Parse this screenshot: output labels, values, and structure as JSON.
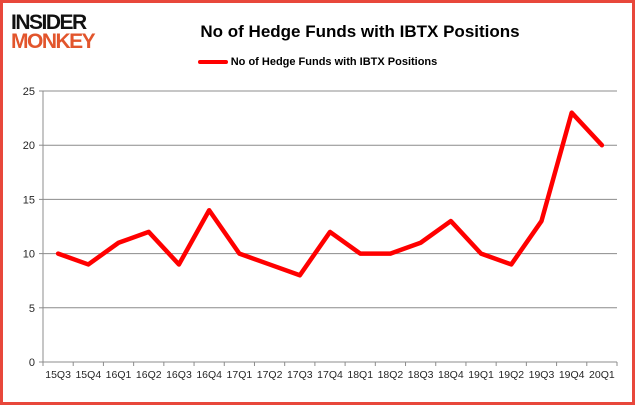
{
  "header": {
    "logo_line1": "INSIDER",
    "logo_line2": "MONKEY",
    "title": "No of Hedge Funds with IBTX Positions"
  },
  "legend": {
    "label": "No of Hedge Funds with IBTX Positions"
  },
  "colors": {
    "line": "#ff0000",
    "page_border": "#e8473b",
    "logo_accent": "#e2552c",
    "logo_primary": "#111111",
    "grid": "#8c8c8c",
    "axis_text": "#262626"
  },
  "chart_data": {
    "type": "line",
    "title": "No of Hedge Funds with IBTX Positions",
    "categories": [
      "15Q3",
      "15Q4",
      "16Q1",
      "16Q2",
      "16Q3",
      "16Q4",
      "17Q1",
      "17Q2",
      "17Q3",
      "17Q4",
      "18Q1",
      "18Q2",
      "18Q3",
      "18Q4",
      "19Q1",
      "19Q2",
      "19Q3",
      "19Q4",
      "20Q1"
    ],
    "series": [
      {
        "name": "No of Hedge Funds with IBTX Positions",
        "color": "#ff0000",
        "values": [
          10,
          9,
          11,
          12,
          9,
          14,
          10,
          9,
          8,
          12,
          10,
          10,
          11,
          13,
          10,
          9,
          13,
          23,
          20
        ]
      }
    ],
    "xlabel": "",
    "ylabel": "",
    "ylim": [
      0,
      25
    ],
    "yticks": [
      0,
      5,
      10,
      15,
      20,
      25
    ],
    "grid": "horizontal-only",
    "legend_position": "top-center"
  }
}
